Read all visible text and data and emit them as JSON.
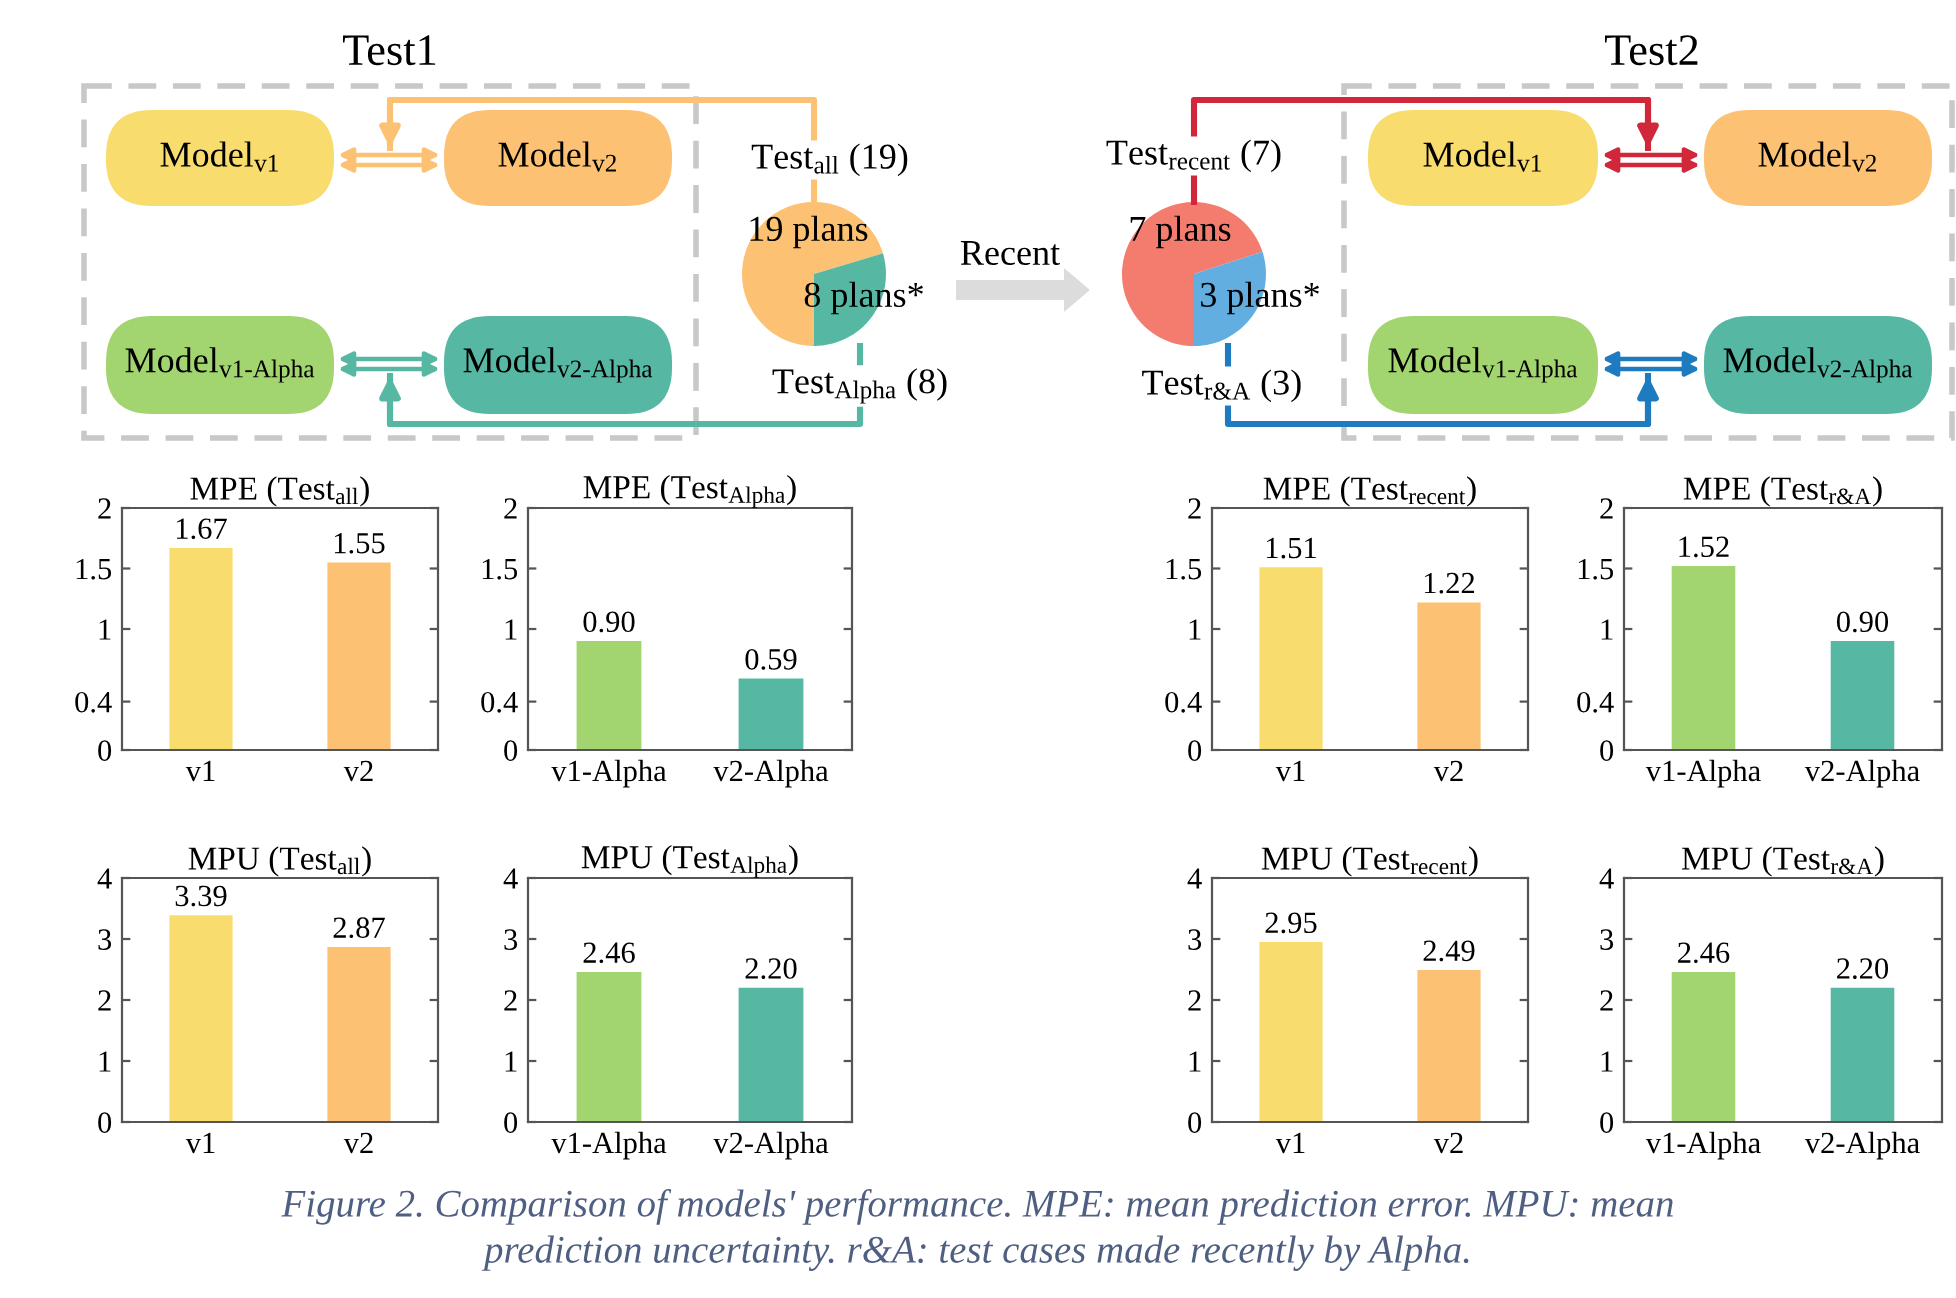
{
  "chart_data": [
    {
      "type": "other",
      "title": "Test1",
      "annotations": [
        "Model$_{v1}$",
        "Model$_{v2}$",
        "Model$_{v1-Alpha}$",
        "Model$_{v2-Alpha}$"
      ],
      "colors": [
        "#f8dc6e",
        "#fcc172",
        "#a2d56f",
        "#56b8a3",
        "#fcc172",
        "#56b8a3"
      ]
    },
    {
      "type": "pie",
      "categories": [
        "19 plans",
        "8 plans*"
      ],
      "values": [
        19,
        8
      ],
      "colors": [
        "#fcc172",
        "#56b8a3"
      ],
      "annotations": [
        "Test$_{all}$ (19)",
        "Test$_{Alpha}$ (8)"
      ]
    },
    {
      "type": "other",
      "annotations": [
        "Recent"
      ]
    },
    {
      "type": "pie",
      "categories": [
        "7 plans",
        "3 plans*"
      ],
      "values": [
        7,
        3
      ],
      "colors": [
        "#f47c6e",
        "#62aee0"
      ],
      "annotations": [
        "Test$_{recent}$ (7)",
        "Test$_{r&A}$ (3)"
      ]
    },
    {
      "type": "other",
      "title": "Test2",
      "annotations": [
        "Model$_{v1}$",
        "Model$_{v2}$",
        "Model$_{v1-Alpha}$",
        "Model$_{v2-Alpha}$"
      ],
      "colors": [
        "#f8dc6e",
        "#fcc172",
        "#a2d56f",
        "#56b8a3",
        "#d0283a",
        "#1f7bbf"
      ]
    },
    {
      "type": "bar",
      "title": "MPE (Test$_{all}$)",
      "categories": [
        "v1",
        "v2"
      ],
      "values": [
        1.67,
        1.55
      ],
      "colors": [
        "#f8dc6e",
        "#fcc172"
      ],
      "ylim": [
        0,
        2
      ],
      "yticks": [
        0,
        0.4,
        1,
        1.5,
        2
      ],
      "value_labels": [
        "1.67",
        "1.55"
      ]
    },
    {
      "type": "bar",
      "title": "MPE (Test$_{Alpha}$)",
      "categories": [
        "v1-Alpha",
        "v2-Alpha"
      ],
      "values": [
        0.9,
        0.59
      ],
      "colors": [
        "#a2d56f",
        "#56b8a3"
      ],
      "ylim": [
        0,
        2
      ],
      "yticks": [
        0,
        0.4,
        1,
        1.5,
        2
      ],
      "value_labels": [
        "0.90",
        "0.59"
      ]
    },
    {
      "type": "bar",
      "title": "MPE (Test$_{recent}$)",
      "categories": [
        "v1",
        "v2"
      ],
      "values": [
        1.51,
        1.22
      ],
      "colors": [
        "#f8dc6e",
        "#fcc172"
      ],
      "ylim": [
        0,
        2
      ],
      "yticks": [
        0,
        0.4,
        1,
        1.5,
        2
      ],
      "value_labels": [
        "1.51",
        "1.22"
      ]
    },
    {
      "type": "bar",
      "title": "MPE (Test$_{r&A}$)",
      "categories": [
        "v1-Alpha",
        "v2-Alpha"
      ],
      "values": [
        1.52,
        0.9
      ],
      "colors": [
        "#a2d56f",
        "#56b8a3"
      ],
      "ylim": [
        0,
        2
      ],
      "yticks": [
        0,
        0.4,
        1,
        1.5,
        2
      ],
      "value_labels": [
        "1.52",
        "0.90"
      ]
    },
    {
      "type": "bar",
      "title": "MPU (Test$_{all}$)",
      "categories": [
        "v1",
        "v2"
      ],
      "values": [
        3.39,
        2.87
      ],
      "colors": [
        "#f8dc6e",
        "#fcc172"
      ],
      "ylim": [
        0,
        4
      ],
      "yticks": [
        0,
        1,
        2,
        3,
        4
      ],
      "value_labels": [
        "3.39",
        "2.87"
      ]
    },
    {
      "type": "bar",
      "title": "MPU (Test$_{Alpha}$)",
      "categories": [
        "v1-Alpha",
        "v2-Alpha"
      ],
      "values": [
        2.46,
        2.2
      ],
      "colors": [
        "#a2d56f",
        "#56b8a3"
      ],
      "ylim": [
        0,
        4
      ],
      "yticks": [
        0,
        1,
        2,
        3,
        4
      ],
      "value_labels": [
        "2.46",
        "2.20"
      ]
    },
    {
      "type": "bar",
      "title": "MPU (Test$_{recent}$)",
      "categories": [
        "v1",
        "v2"
      ],
      "values": [
        2.95,
        2.49
      ],
      "colors": [
        "#f8dc6e",
        "#fcc172"
      ],
      "ylim": [
        0,
        4
      ],
      "yticks": [
        0,
        1,
        2,
        3,
        4
      ],
      "value_labels": [
        "2.95",
        "2.49"
      ]
    },
    {
      "type": "bar",
      "title": "MPU (Test$_{r&A}$)",
      "categories": [
        "v1-Alpha",
        "v2-Alpha"
      ],
      "values": [
        2.46,
        2.2
      ],
      "colors": [
        "#a2d56f",
        "#56b8a3"
      ],
      "ylim": [
        0,
        4
      ],
      "yticks": [
        0,
        1,
        2,
        3,
        4
      ],
      "value_labels": [
        "2.46",
        "2.20"
      ]
    },
    {
      "type": "other",
      "annotations": [
        "Figure 2. Comparison of models' performance. MPE: mean prediction error. MPU: mean prediction uncertainty. r&A: test cases made recently by Alpha."
      ]
    }
  ]
}
